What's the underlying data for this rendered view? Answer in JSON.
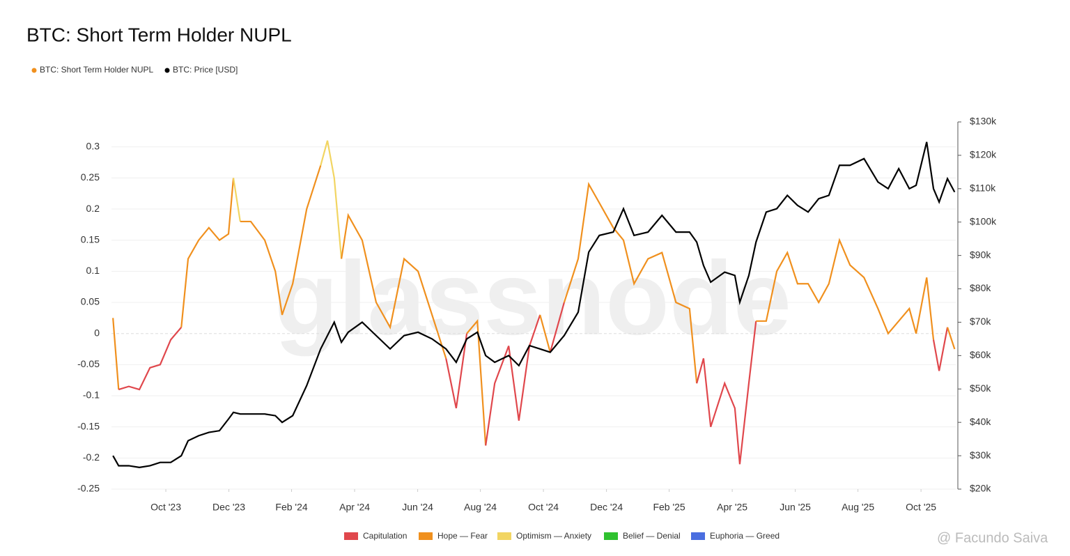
{
  "chart_data": {
    "type": "line",
    "title": "BTC: Short Term Holder NUPL",
    "watermark": "glassnode",
    "credit": "@ Facundo Saiva",
    "x": [
      2023.61,
      2023.625,
      2023.652,
      2023.68,
      2023.708,
      2023.735,
      2023.763,
      2023.791,
      2023.809,
      2023.837,
      2023.864,
      2023.892,
      2023.916,
      2023.929,
      2023.947,
      2023.975,
      2024.012,
      2024.04,
      2024.058,
      2024.086,
      2024.123,
      2024.16,
      2024.178,
      2024.196,
      2024.215,
      2024.233,
      2024.27,
      2024.307,
      2024.344,
      2024.381,
      2024.418,
      2024.455,
      2024.492,
      2024.519,
      2024.547,
      2024.575,
      2024.597,
      2024.621,
      2024.658,
      2024.685,
      2024.713,
      2024.741,
      2024.768,
      2024.805,
      2024.842,
      2024.87,
      2024.898,
      2024.935,
      2024.962,
      2024.99,
      2025.027,
      2025.064,
      2025.101,
      2025.137,
      2025.156,
      2025.174,
      2025.193,
      2025.23,
      2025.257,
      2025.27,
      2025.294,
      2025.313,
      2025.34,
      2025.368,
      2025.396,
      2025.423,
      2025.451,
      2025.479,
      2025.506,
      2025.534,
      2025.562,
      2025.599,
      2025.636,
      2025.663,
      2025.691,
      2025.719,
      2025.737,
      2025.765,
      2025.783,
      2025.798,
      2025.82,
      2025.839
    ],
    "series": [
      {
        "name": "BTC: Short Term Holder NUPL",
        "color": "#f0901e",
        "axis": "y",
        "values": [
          0.025,
          -0.09,
          -0.085,
          -0.09,
          -0.055,
          -0.05,
          -0.01,
          0.01,
          0.12,
          0.15,
          0.17,
          0.15,
          0.16,
          0.25,
          0.18,
          0.18,
          0.15,
          0.1,
          0.03,
          0.08,
          0.2,
          0.27,
          0.31,
          0.25,
          0.12,
          0.19,
          0.15,
          0.05,
          0.01,
          0.12,
          0.1,
          0.03,
          -0.04,
          -0.12,
          0.0,
          0.02,
          -0.18,
          -0.08,
          -0.02,
          -0.14,
          -0.02,
          0.03,
          -0.03,
          0.05,
          0.12,
          0.24,
          0.21,
          0.17,
          0.15,
          0.08,
          0.12,
          0.13,
          0.05,
          0.04,
          -0.08,
          -0.04,
          -0.15,
          -0.08,
          -0.12,
          -0.21,
          -0.08,
          0.02,
          0.02,
          0.1,
          0.13,
          0.08,
          0.08,
          0.05,
          0.08,
          0.15,
          0.11,
          0.09,
          0.04,
          0.0,
          0.02,
          0.04,
          0.0,
          0.09,
          -0.01,
          -0.06,
          0.01,
          -0.025
        ]
      },
      {
        "name": "BTC: Price [USD]",
        "color": "#000000",
        "axis": "y2",
        "values": [
          30000,
          27000,
          27000,
          26500,
          27000,
          28000,
          28000,
          30000,
          34500,
          36000,
          37000,
          37500,
          41000,
          43000,
          42500,
          42500,
          42500,
          42000,
          40000,
          42000,
          51000,
          62000,
          66000,
          70000,
          64000,
          67000,
          70000,
          66000,
          62000,
          66000,
          67000,
          65000,
          62000,
          58000,
          65000,
          67000,
          60000,
          58000,
          60000,
          57000,
          63000,
          62000,
          61000,
          66000,
          73000,
          91000,
          96000,
          97000,
          104000,
          96000,
          97000,
          102000,
          97000,
          97000,
          94000,
          87000,
          82000,
          85000,
          84000,
          76000,
          84000,
          94000,
          103000,
          104000,
          108000,
          105000,
          103000,
          107000,
          108000,
          117000,
          117000,
          119000,
          112000,
          110000,
          116000,
          110000,
          111000,
          124000,
          110000,
          106000,
          113000,
          109000
        ]
      }
    ],
    "zones": [
      {
        "name": "Capitulation",
        "color": "#e0474c",
        "range": [
          null,
          0
        ]
      },
      {
        "name": "Hope — Fear",
        "color": "#f0901e",
        "range": [
          0,
          0.25
        ]
      },
      {
        "name": "Optimism — Anxiety",
        "color": "#f2d562",
        "range": [
          0.25,
          0.5
        ]
      },
      {
        "name": "Belief — Denial",
        "color": "#2fc12f",
        "range": [
          0.5,
          0.75
        ]
      },
      {
        "name": "Euphoria — Greed",
        "color": "#4a6ee0",
        "range": [
          0.75,
          null
        ]
      }
    ],
    "xlim": [
      2023.606,
      2025.842
    ],
    "xticks": [
      {
        "value": 2023.75,
        "label": "Oct '23"
      },
      {
        "value": 2023.917,
        "label": "Dec '23"
      },
      {
        "value": 2024.083,
        "label": "Feb '24"
      },
      {
        "value": 2024.25,
        "label": "Apr '24"
      },
      {
        "value": 2024.417,
        "label": "Jun '24"
      },
      {
        "value": 2024.583,
        "label": "Aug '24"
      },
      {
        "value": 2024.75,
        "label": "Oct '24"
      },
      {
        "value": 2024.917,
        "label": "Dec '24"
      },
      {
        "value": 2025.083,
        "label": "Feb '25"
      },
      {
        "value": 2025.25,
        "label": "Apr '25"
      },
      {
        "value": 2025.417,
        "label": "Jun '25"
      },
      {
        "value": 2025.583,
        "label": "Aug '25"
      },
      {
        "value": 2025.75,
        "label": "Oct '25"
      }
    ],
    "ylim": [
      -0.25,
      0.34
    ],
    "yticks": [
      0.3,
      0.25,
      0.2,
      0.15,
      0.1,
      0.05,
      0,
      -0.05,
      -0.1,
      -0.15,
      -0.2,
      -0.25
    ],
    "y2lim": [
      20000,
      130000
    ],
    "y2ticks": [
      {
        "value": 130000,
        "label": "$130k"
      },
      {
        "value": 120000,
        "label": "$120k"
      },
      {
        "value": 110000,
        "label": "$110k"
      },
      {
        "value": 100000,
        "label": "$100k"
      },
      {
        "value": 90000,
        "label": "$90k"
      },
      {
        "value": 80000,
        "label": "$80k"
      },
      {
        "value": 70000,
        "label": "$70k"
      },
      {
        "value": 60000,
        "label": "$60k"
      },
      {
        "value": 50000,
        "label": "$50k"
      },
      {
        "value": 40000,
        "label": "$40k"
      },
      {
        "value": 30000,
        "label": "$30k"
      },
      {
        "value": 20000,
        "label": "$20k"
      }
    ],
    "grid": true
  }
}
